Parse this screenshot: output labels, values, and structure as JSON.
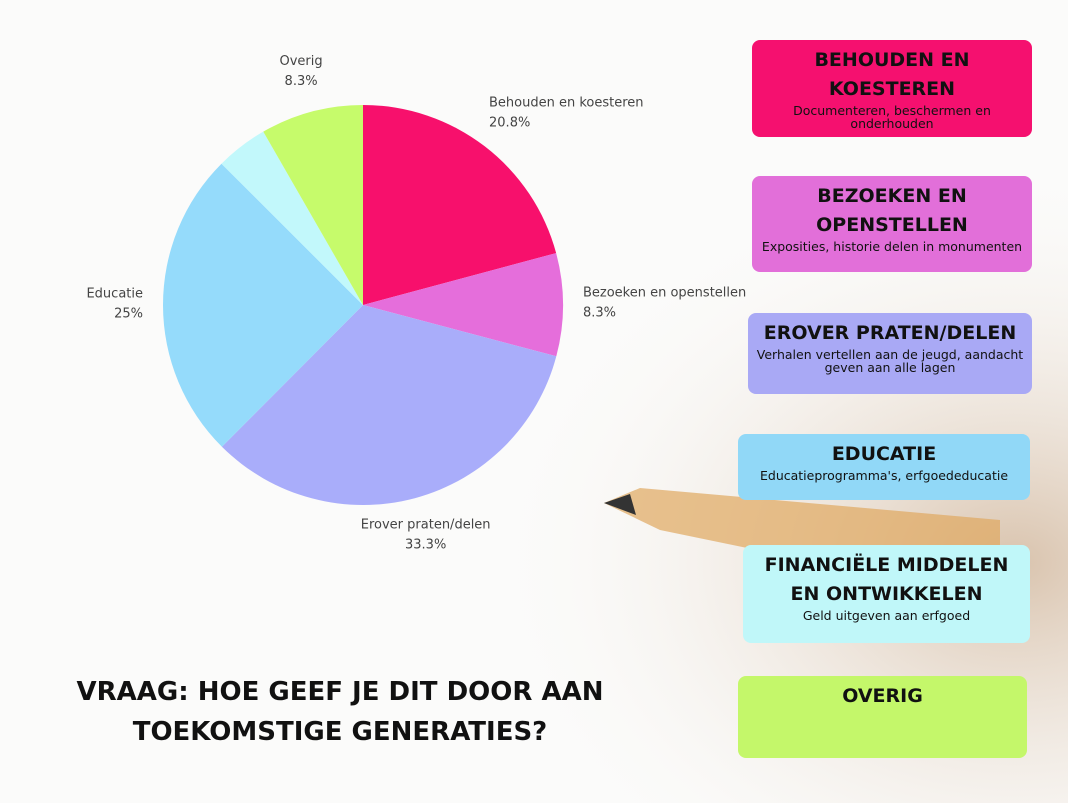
{
  "chart_data": {
    "type": "pie",
    "categories": [
      "Behouden en koesteren",
      "Bezoeken en openstellen",
      "Erover praten/delen",
      "Educatie",
      null,
      "Overig"
    ],
    "values": [
      20.8,
      8.3,
      33.3,
      25,
      4.2,
      8.3
    ],
    "value_labels": [
      "20.8%",
      "8.3%",
      "33.3%",
      "25%",
      null,
      "8.3%"
    ],
    "colors": [
      "#f7106c",
      "#e56edb",
      "#a9adfa",
      "#95dbfb",
      "#c2f8fb",
      "#c6fb6b"
    ]
  },
  "cards": [
    {
      "title": "BEHOUDEN EN KOESTEREN",
      "subtitle": "Documenteren, beschermen en onderhouden",
      "color": "#f5106f"
    },
    {
      "title": "BEZOEKEN EN OPENSTELLEN",
      "subtitle": "Exposities, historie delen in monumenten",
      "color": "#e26fd9"
    },
    {
      "title": "EROVER PRATEN/DELEN",
      "subtitle": "Verhalen vertellen aan de jeugd, aandacht geven aan alle lagen",
      "color": "#a9a9f5"
    },
    {
      "title": "EDUCATIE",
      "subtitle": "Educatieprogramma's, erfgoededucatie",
      "color": "#91d8f7"
    },
    {
      "title": "FINANCIËLE MIDDELEN EN ONTWIKKELEN",
      "subtitle": "Geld uitgeven aan erfgoed",
      "color": "#c0f7f9"
    },
    {
      "title": "OVERIG",
      "color": "#c4f76a"
    }
  ],
  "question": "VRAAG: HOE GEEF JE DIT DOOR AAN TOEKOMSTIGE GENERATIES?"
}
